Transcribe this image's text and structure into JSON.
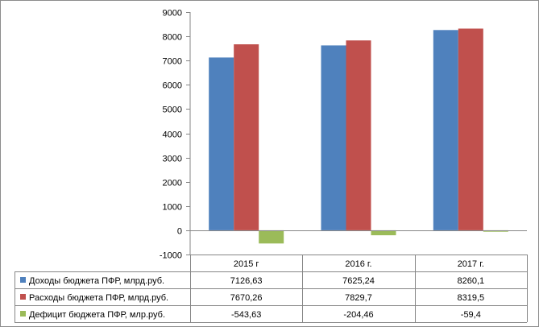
{
  "chart_data": {
    "type": "bar",
    "categories": [
      "2015 г",
      "2016 г.",
      "2017 г."
    ],
    "series": [
      {
        "name": "Доходы бюджета ПФР, млрд.руб.",
        "values": [
          7126.63,
          7625.24,
          8260.1
        ],
        "labels": [
          "7126,63",
          "7625,24",
          "8260,1"
        ],
        "color": "#4f81bd"
      },
      {
        "name": "Расходы бюджета  ПФР, млрд.руб.",
        "values": [
          7670.26,
          7829.7,
          8319.5
        ],
        "labels": [
          "7670,26",
          "7829,7",
          "8319,5"
        ],
        "color": "#c0504d"
      },
      {
        "name": "Дефицит бюджета  ПФР, млр.руб.",
        "values": [
          -543.63,
          -204.46,
          -59.4
        ],
        "labels": [
          "-543,63",
          "-204,46",
          "-59,4"
        ],
        "color": "#9bbb59"
      }
    ],
    "ylim": [
      -1000,
      9000
    ],
    "ytick_step": 1000,
    "grid": false,
    "legend": "table"
  }
}
